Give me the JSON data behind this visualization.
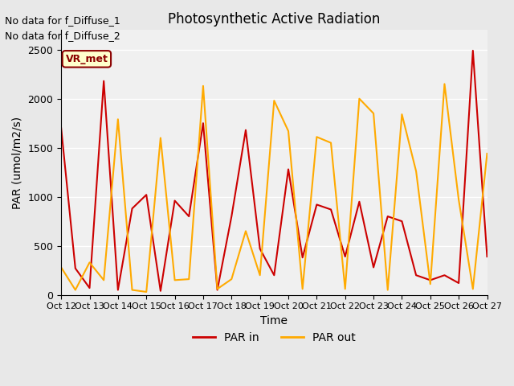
{
  "title": "Photosynthetic Active Radiation",
  "ylabel": "PAR (umol/m2/s)",
  "xlabel": "Time",
  "top_left_text1": "No data for f_Diffuse_1",
  "top_left_text2": "No data for f_Diffuse_2",
  "inset_label": "VR_met",
  "legend": [
    "PAR in",
    "PAR out"
  ],
  "colors": {
    "par_in": "#cc0000",
    "par_out": "#ffaa00"
  },
  "x_labels": [
    "Oct 12",
    "Oct 13",
    "Oct 14",
    "Oct 15",
    "Oct 16",
    "Oct 17",
    "Oct 18",
    "Oct 19",
    "Oct 20",
    "Oct 21",
    "Oct 22",
    "Oct 23",
    "Oct 24",
    "Oct 25",
    "Oct 26",
    "Oct 27"
  ],
  "par_in_x": [
    0,
    1,
    2,
    3,
    4,
    5,
    6,
    7,
    8,
    9,
    10,
    11,
    12,
    13,
    14,
    15,
    16,
    17,
    18,
    19,
    20,
    21,
    22,
    23,
    24,
    25,
    26,
    27,
    28,
    29,
    30
  ],
  "par_in_y": [
    1700,
    270,
    70,
    2180,
    50,
    880,
    1020,
    40,
    960,
    800,
    1750,
    50,
    800,
    1680,
    470,
    200,
    1280,
    380,
    920,
    870,
    390,
    950,
    280,
    800,
    750,
    200,
    150,
    200,
    120,
    2490,
    390
  ],
  "par_out_x": [
    0,
    1,
    2,
    3,
    4,
    5,
    6,
    7,
    8,
    9,
    10,
    11,
    12,
    13,
    14,
    15,
    16,
    17,
    18,
    19,
    20,
    21,
    22,
    23,
    24,
    25,
    26,
    27,
    28,
    29,
    30
  ],
  "par_out_y": [
    280,
    50,
    330,
    150,
    1790,
    50,
    30,
    1600,
    150,
    160,
    2130,
    60,
    160,
    650,
    200,
    1980,
    1670,
    60,
    1610,
    1550,
    60,
    2000,
    1850,
    50,
    1840,
    1260,
    110,
    2150,
    970,
    60,
    1440
  ],
  "ylim": [
    0,
    2700
  ],
  "xlim": [
    0,
    30
  ],
  "bg_color": "#e8e8e8",
  "plot_bg": "#f0f0f0",
  "grid_color": "#ffffff"
}
